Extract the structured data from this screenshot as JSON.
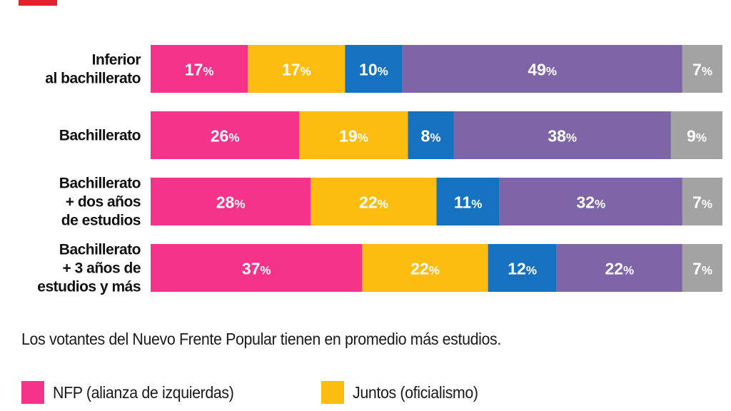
{
  "chart_data": {
    "type": "bar",
    "orientation": "horizontal",
    "stacked": true,
    "categories": [
      [
        "Inferior",
        "al bachillerato"
      ],
      [
        "Bachillerato"
      ],
      [
        "Bachillerato",
        "+ dos años",
        "de estudios"
      ],
      [
        "Bachillerato",
        "+ 3 años de",
        "estudios y más"
      ]
    ],
    "series": [
      {
        "name": "NFP (alianza de izquierdas)",
        "color": "#f5338a",
        "values": [
          17,
          26,
          28,
          37
        ]
      },
      {
        "name": "Juntos (oficialismo)",
        "color": "#fdbd10",
        "values": [
          17,
          19,
          22,
          22
        ]
      },
      {
        "color": "#1672c1",
        "values": [
          10,
          8,
          11,
          12
        ]
      },
      {
        "color": "#7e65a8",
        "values": [
          49,
          38,
          32,
          22
        ]
      },
      {
        "color": "#a3a3a3",
        "values": [
          7,
          9,
          7,
          7
        ]
      }
    ],
    "value_suffix": "%",
    "xlim": [
      0,
      100
    ],
    "grid": false,
    "legend_position": "bottom-left",
    "caption": "Los votantes del Nuevo Frente Popular tienen en promedio más estudios."
  },
  "colors": {
    "accent": "#e3222b"
  }
}
